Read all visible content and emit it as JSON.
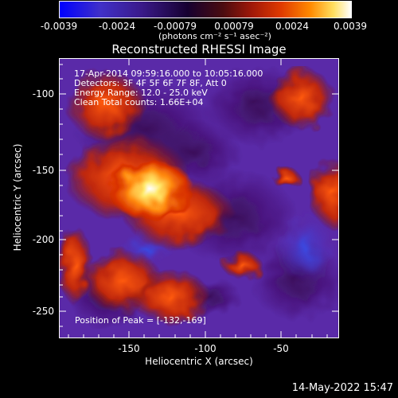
{
  "colorbar": {
    "ticks": [
      "-0.0039",
      "-0.0024",
      "-0.00079",
      "0.00079",
      "0.0024",
      "0.0039"
    ],
    "units": "(photons cm⁻² s⁻¹ asec⁻²)",
    "min": -0.0039,
    "max": 0.0039
  },
  "image": {
    "title": "Reconstructed RHESSI Image",
    "info_lines": [
      "17-Apr-2014 09:59:16.000 to 10:05:16.000",
      "Detectors: 3F 4F 5F 6F 7F 8F, Att 0",
      "Energy Range: 12.0 - 25.0 keV",
      "Clean     Total counts: 1.66E+04"
    ],
    "peak_label": "Position of Peak = [-132,-169]",
    "xlabel": "Heliocentric X (arcsec)",
    "ylabel": "Heliocentric Y (arcsec)",
    "xticks": [
      "-150",
      "-100",
      "-50"
    ],
    "yticks": [
      "-100",
      "-150",
      "-200",
      "-250"
    ]
  },
  "footer": {
    "timestamp": "14-May-2022 15:47"
  }
}
